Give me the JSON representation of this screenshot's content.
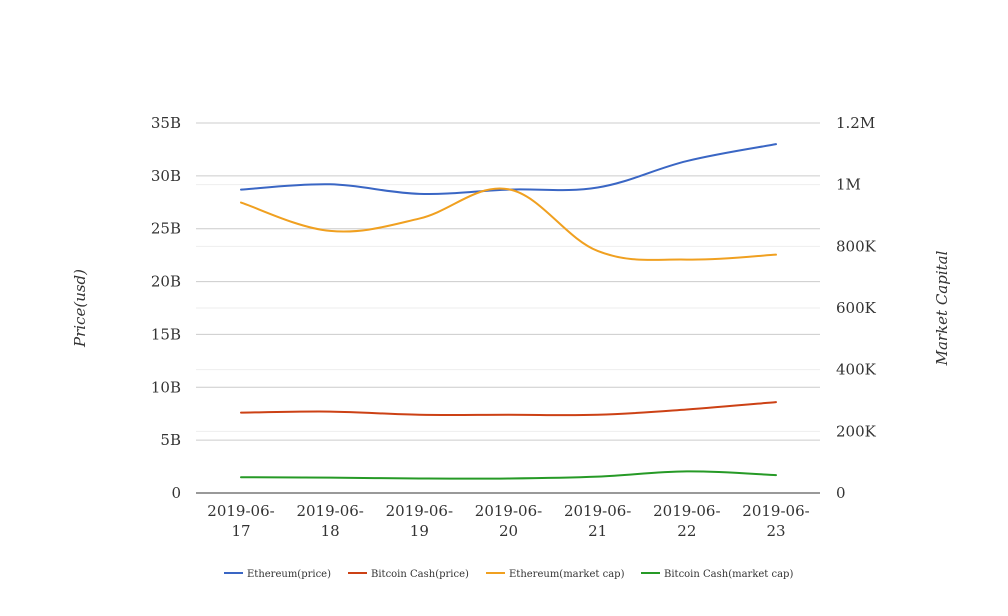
{
  "chart_data": {
    "type": "line",
    "categories": [
      "2019-06-17",
      "2019-06-18",
      "2019-06-19",
      "2019-06-20",
      "2019-06-21",
      "2019-06-22",
      "2019-06-23"
    ],
    "category_lines": [
      [
        "2019-06-",
        "17"
      ],
      [
        "2019-06-",
        "18"
      ],
      [
        "2019-06-",
        "19"
      ],
      [
        "2019-06-",
        "20"
      ],
      [
        "2019-06-",
        "21"
      ],
      [
        "2019-06-",
        "22"
      ],
      [
        "2019-06-",
        "23"
      ]
    ],
    "ylabel_left": "Price(usd)",
    "ylabel_right": "Market Capital",
    "y_left": {
      "min": 0,
      "max": 35000000000,
      "ticks": [
        0,
        5000000000,
        10000000000,
        15000000000,
        20000000000,
        25000000000,
        30000000000,
        35000000000
      ],
      "tick_labels": [
        "0",
        "5B",
        "10B",
        "15B",
        "20B",
        "25B",
        "30B",
        "35B"
      ]
    },
    "y_right": {
      "min": 0,
      "max": 1200000,
      "ticks": [
        0,
        200000,
        400000,
        600000,
        800000,
        1000000,
        1200000
      ],
      "tick_labels": [
        "0",
        "200K",
        "400K",
        "600K",
        "800K",
        "1M",
        "1.2M"
      ]
    },
    "grid": true,
    "legend_position": "bottom",
    "series": [
      {
        "name": "Ethereum(price)",
        "axis": "left",
        "color": "#3a66c4",
        "values": [
          28700000000,
          29200000000,
          28300000000,
          28700000000,
          28900000000,
          31400000000,
          33000000000
        ]
      },
      {
        "name": "Bitcoin Cash(price)",
        "axis": "left",
        "color": "#cc4115",
        "values": [
          7600000000,
          7700000000,
          7400000000,
          7400000000,
          7400000000,
          7900000000,
          8600000000
        ]
      },
      {
        "name": "Ethereum(market cap)",
        "axis": "right",
        "color": "#f0a020",
        "values": [
          942000,
          850000,
          890000,
          985000,
          785000,
          757000,
          773000
        ]
      },
      {
        "name": "Bitcoin Cash(market cap)",
        "axis": "right",
        "color": "#269a26",
        "values": [
          51000,
          50000,
          47000,
          47000,
          53000,
          70000,
          58000
        ]
      }
    ]
  }
}
